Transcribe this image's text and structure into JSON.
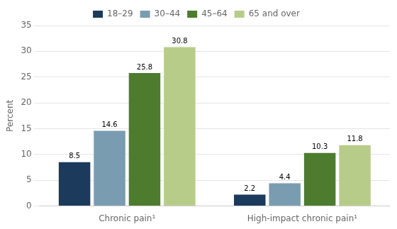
{
  "chart_data": {
    "type": "bar",
    "categories": [
      "Chronic pain¹",
      "High-impact chronic pain¹"
    ],
    "series": [
      {
        "name": "18–29",
        "color": "#1b3a5c",
        "values": [
          8.5,
          2.2
        ]
      },
      {
        "name": "30–44",
        "color": "#7a9cb0",
        "values": [
          14.6,
          4.4
        ]
      },
      {
        "name": "45–64",
        "color": "#4d7c2e",
        "values": [
          25.8,
          10.3
        ]
      },
      {
        "name": "65 and over",
        "color": "#b8cc8a",
        "values": [
          30.8,
          11.8
        ]
      }
    ],
    "ylabel": "Percent",
    "ylim": [
      0,
      35
    ],
    "yticks": [
      0,
      5,
      10,
      15,
      20,
      25,
      30,
      35
    ],
    "grid": true,
    "legend": "top",
    "data_labels": true
  }
}
